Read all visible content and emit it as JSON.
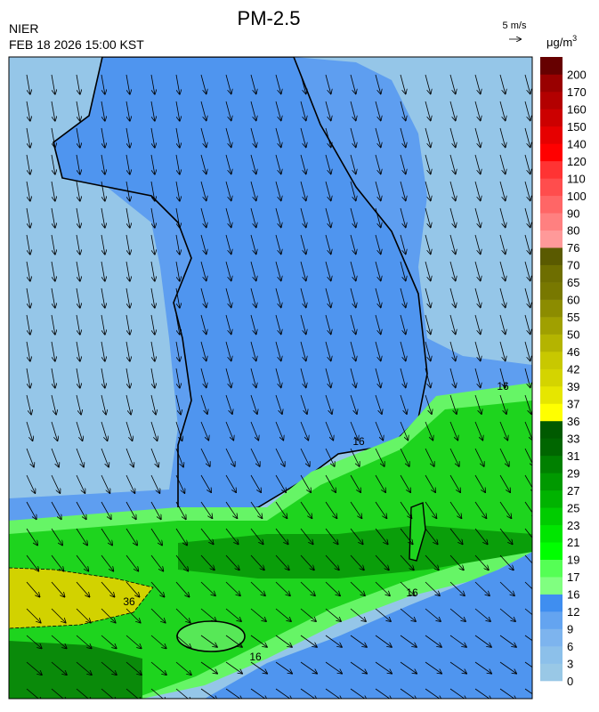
{
  "header": {
    "title": "PM-2.5",
    "agency": "NIER",
    "timestamp": "FEB 18 2026 15:00 KST",
    "wind_scale": "5 m/s",
    "unit": "μg/m",
    "unit_exponent": "3"
  },
  "colorbar": {
    "levels": [
      0,
      3,
      6,
      9,
      12,
      16,
      17,
      19,
      21,
      23,
      25,
      27,
      29,
      31,
      33,
      36,
      37,
      39,
      42,
      46,
      50,
      55,
      60,
      65,
      70,
      76,
      80,
      90,
      100,
      110,
      120,
      140,
      150,
      160,
      170,
      200
    ],
    "colors": [
      "#99c8e6",
      "#8cc0ea",
      "#7db4ee",
      "#64a4f0",
      "#3f8ef0",
      "#80ff80",
      "#55ff55",
      "#00ff00",
      "#00e600",
      "#00cc00",
      "#00b300",
      "#009900",
      "#008000",
      "#006600",
      "#005a00",
      "#ffff00",
      "#e6e600",
      "#d4d400",
      "#c8c800",
      "#b4b400",
      "#a0a000",
      "#8c8c00",
      "#787800",
      "#6e6e00",
      "#5a5a00",
      "#ff9999",
      "#ff8080",
      "#ff6666",
      "#ff4d4d",
      "#ff3333",
      "#ff0000",
      "#e60000",
      "#cc0000",
      "#b30000",
      "#990000",
      "#660000"
    ]
  },
  "contour_labels": [
    16,
    16,
    16,
    16,
    36
  ]
}
